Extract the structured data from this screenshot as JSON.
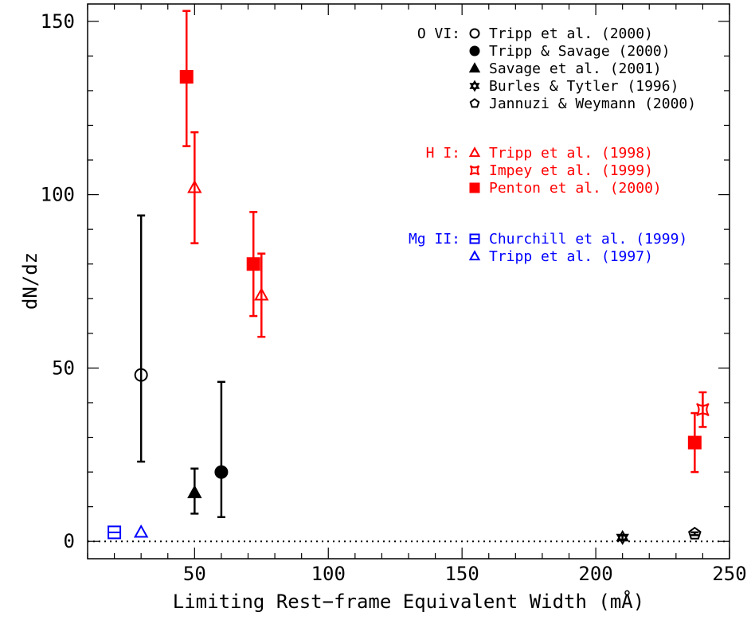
{
  "chart_data": {
    "type": "scatter",
    "xlabel": "Limiting Rest−frame Equivalent Width (mÅ)",
    "ylabel": "dN/dz",
    "xlim": [
      10,
      250
    ],
    "ylim": [
      -5,
      155
    ],
    "x_ticks": [
      50,
      100,
      150,
      200,
      250
    ],
    "y_ticks": [
      0,
      50,
      100,
      150
    ],
    "grid": false,
    "legend_placement": "top-right",
    "reference_line": {
      "y": 0,
      "style": "dotted"
    },
    "colors": {
      "O VI": "#000000",
      "H I": "#ff0000",
      "Mg II": "#0000ff"
    },
    "legend_groups": [
      {
        "label": "O VI:",
        "color": "#000000",
        "entries": [
          {
            "marker": "open-circle",
            "text": "Tripp et al. (2000)"
          },
          {
            "marker": "filled-circle",
            "text": "Tripp & Savage (2000)"
          },
          {
            "marker": "filled-triangle",
            "text": "Savage et al. (2001)"
          },
          {
            "marker": "star",
            "text": "Burles & Tytler (1996)"
          },
          {
            "marker": "open-pentagon",
            "text": "Jannuzi & Weymann (2000)"
          }
        ]
      },
      {
        "label": "H I:",
        "color": "#ff0000",
        "entries": [
          {
            "marker": "open-triangle",
            "text": "Tripp et al. (1998)"
          },
          {
            "marker": "skew-star",
            "text": "Impey et al. (1999)"
          },
          {
            "marker": "filled-square",
            "text": "Penton et al. (2000)"
          }
        ]
      },
      {
        "label": "Mg II:",
        "color": "#0000ff",
        "entries": [
          {
            "marker": "open-square",
            "text": "Churchill et al. (1999)"
          },
          {
            "marker": "open-triangle",
            "text": "Tripp et al. (1997)"
          }
        ]
      }
    ],
    "series": [
      {
        "name": "Tripp et al. (2000)",
        "marker": "open-circle",
        "color": "#000000",
        "points": [
          {
            "x": 30,
            "y": 48,
            "ylo": 23,
            "yhi": 94
          }
        ]
      },
      {
        "name": "Tripp & Savage (2000)",
        "marker": "filled-circle",
        "color": "#000000",
        "points": [
          {
            "x": 60,
            "y": 20,
            "ylo": 7,
            "yhi": 46
          }
        ]
      },
      {
        "name": "Savage et al. (2001)",
        "marker": "filled-triangle",
        "color": "#000000",
        "points": [
          {
            "x": 50,
            "y": 14,
            "ylo": 8,
            "yhi": 21
          }
        ]
      },
      {
        "name": "Burles & Tytler (1996)",
        "marker": "star",
        "color": "#000000",
        "points": [
          {
            "x": 210,
            "y": 1.1,
            "ylo": 0.5,
            "yhi": 1.7
          }
        ]
      },
      {
        "name": "Jannuzi & Weymann (2000)",
        "marker": "open-pentagon",
        "color": "#000000",
        "points": [
          {
            "x": 237,
            "y": 2.2,
            "ylo": 1.8,
            "yhi": 2.6
          }
        ]
      },
      {
        "name": "Tripp et al. (1998)",
        "marker": "open-triangle",
        "color": "#ff0000",
        "points": [
          {
            "x": 50,
            "y": 102,
            "ylo": 86,
            "yhi": 118
          },
          {
            "x": 75,
            "y": 71,
            "ylo": 59,
            "yhi": 83
          }
        ]
      },
      {
        "name": "Impey et al. (1999)",
        "marker": "skew-star",
        "color": "#ff0000",
        "points": [
          {
            "x": 240,
            "y": 38,
            "ylo": 33,
            "yhi": 43
          }
        ]
      },
      {
        "name": "Penton et al. (2000)",
        "marker": "filled-square",
        "color": "#ff0000",
        "points": [
          {
            "x": 47,
            "y": 134,
            "ylo": 114,
            "yhi": 153
          },
          {
            "x": 72,
            "y": 80,
            "ylo": 65,
            "yhi": 95
          },
          {
            "x": 237,
            "y": 28.5,
            "ylo": 20,
            "yhi": 37
          }
        ]
      },
      {
        "name": "Churchill et al. (1999)",
        "marker": "open-square",
        "color": "#0000ff",
        "points": [
          {
            "x": 20,
            "y": 2.6,
            "ylo": 2.6,
            "yhi": 2.6
          }
        ]
      },
      {
        "name": "Tripp et al. (1997)",
        "marker": "open-triangle",
        "color": "#0000ff",
        "points": [
          {
            "x": 30,
            "y": 2.6,
            "ylo": 2.6,
            "yhi": 2.6
          }
        ]
      }
    ]
  }
}
